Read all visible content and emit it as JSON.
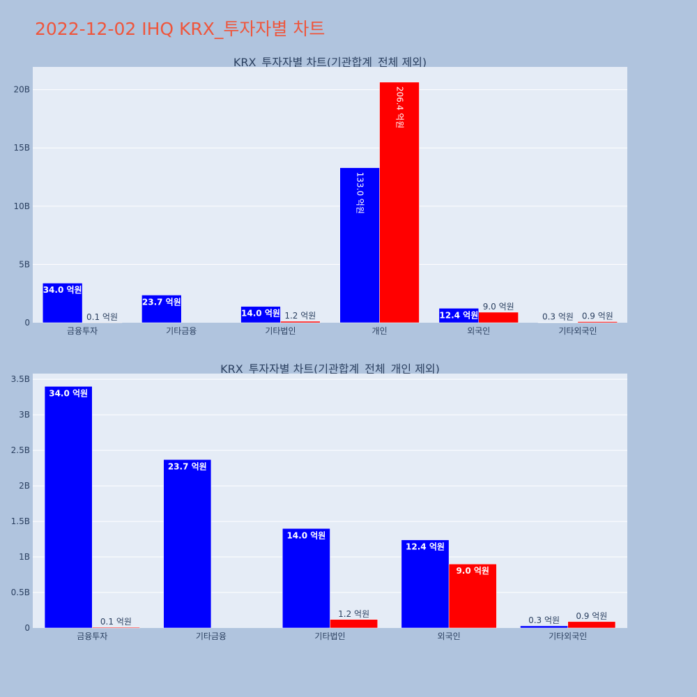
{
  "page": {
    "title": "2022-12-02 IHQ KRX_투자자별 차트"
  },
  "chart_data": [
    {
      "type": "bar",
      "title": "KRX_투자자별 차트(기관합계_전체 제외)",
      "categories": [
        "금융투자",
        "기타금융",
        "기타법인",
        "개인",
        "외국인",
        "기타외국인"
      ],
      "series": [
        {
          "color": "#0000ff",
          "values": [
            3400000000,
            2370000000,
            1400000000,
            13300000000,
            1240000000,
            30000000
          ]
        },
        {
          "color": "#ff0000",
          "values": [
            10000000,
            0,
            120000000,
            20640000000,
            900000000,
            90000000
          ]
        }
      ],
      "labels": [
        [
          "34.0 억원",
          "23.7 억원",
          "14.0 억원",
          "133.0 억원",
          "12.4 억원",
          "0.3 억원"
        ],
        [
          "0.1 억원",
          "",
          "1.2 억원",
          "206.4 억원",
          "9.0 억원",
          "0.9 억원"
        ]
      ],
      "yticks": [
        {
          "v": 0,
          "t": "0"
        },
        {
          "v": 5000000000,
          "t": "5B"
        },
        {
          "v": 10000000000,
          "t": "10B"
        },
        {
          "v": 15000000000,
          "t": "15B"
        },
        {
          "v": 20000000000,
          "t": "20B"
        }
      ],
      "ylim": [
        0,
        21950000000
      ],
      "grid": true,
      "legend": "none"
    },
    {
      "type": "bar",
      "title": "KRX_투자자별 차트(기관합계_전체_개인 제외)",
      "categories": [
        "금융투자",
        "기타금융",
        "기타법인",
        "외국인",
        "기타외국인"
      ],
      "series": [
        {
          "color": "#0000ff",
          "values": [
            3400000000,
            2370000000,
            1400000000,
            1240000000,
            30000000
          ]
        },
        {
          "color": "#ff0000",
          "values": [
            10000000,
            0,
            120000000,
            900000000,
            90000000
          ]
        }
      ],
      "labels": [
        [
          "34.0 억원",
          "23.7 억원",
          "14.0 억원",
          "12.4 억원",
          "0.3 억원"
        ],
        [
          "0.1 억원",
          "",
          "1.2 억원",
          "9.0 억원",
          "0.9 억원"
        ]
      ],
      "yticks": [
        {
          "v": 0,
          "t": "0"
        },
        {
          "v": 500000000,
          "t": "0.5B"
        },
        {
          "v": 1000000000,
          "t": "1B"
        },
        {
          "v": 1500000000,
          "t": "1.5B"
        },
        {
          "v": 2000000000,
          "t": "2B"
        },
        {
          "v": 2500000000,
          "t": "2.5B"
        },
        {
          "v": 3000000000,
          "t": "3B"
        },
        {
          "v": 3500000000,
          "t": "3.5B"
        }
      ],
      "ylim": [
        0,
        3580000000
      ],
      "grid": true,
      "legend": "none"
    }
  ]
}
